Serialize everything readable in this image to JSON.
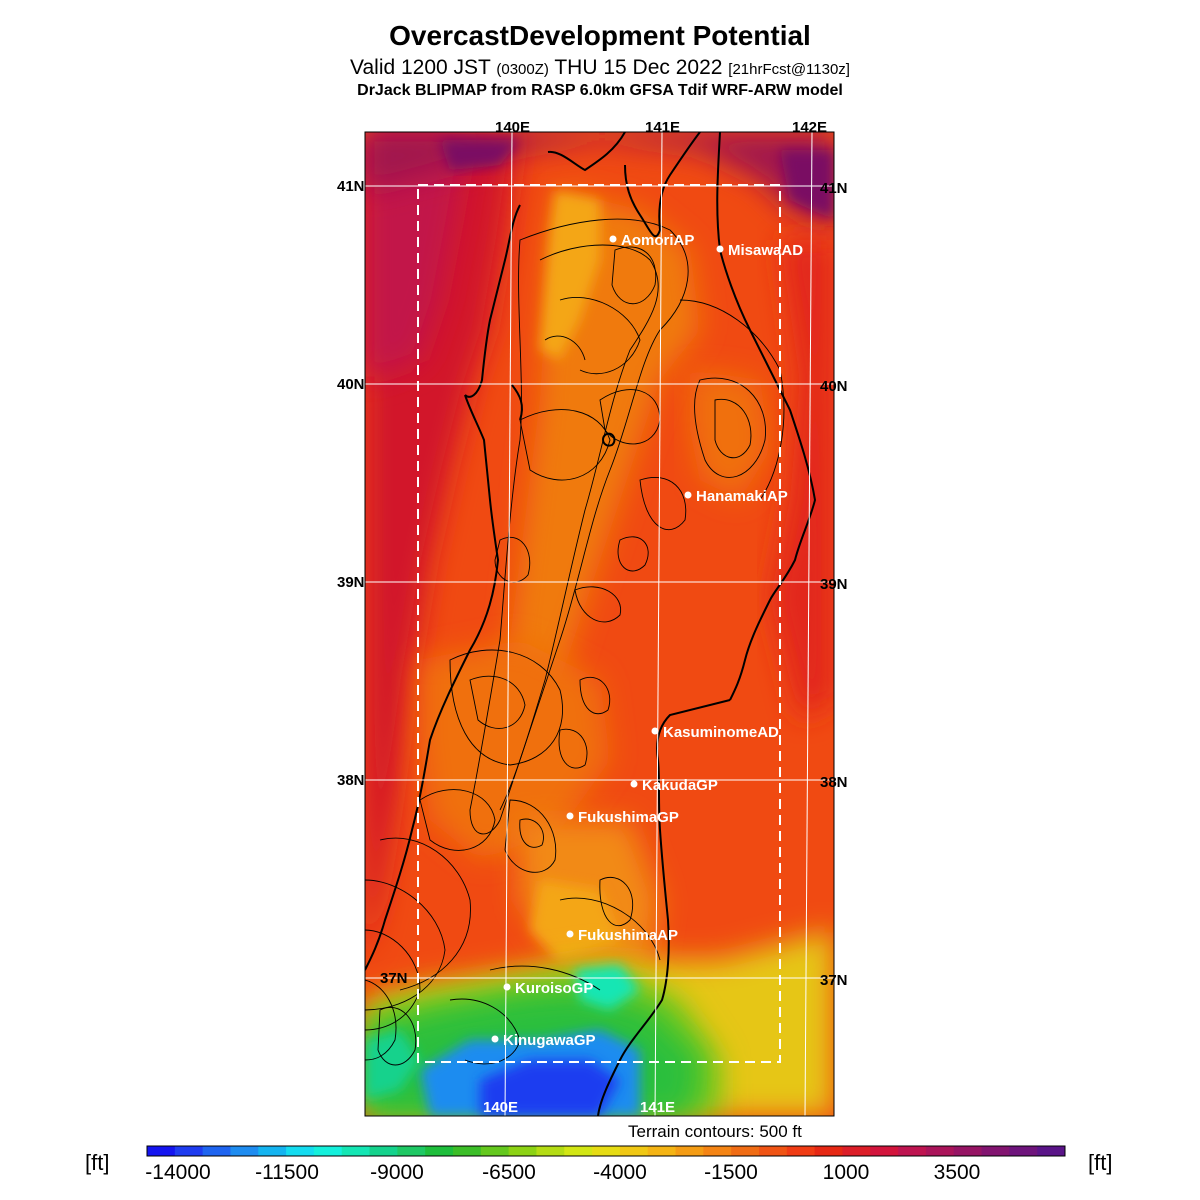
{
  "header": {
    "title": "OvercastDevelopment Potential",
    "valid_prefix": "Valid 1200 JST",
    "valid_utc": "(0300Z)",
    "valid_date": "THU 15 Dec 2022",
    "forecast_info": "[21hrFcst@1130z]",
    "model_line": "DrJack BLIPMAP from RASP 6.0km GFSA Tdif WRF-ARW model"
  },
  "map": {
    "lon_labels_top": [
      "140E",
      "141E",
      "142E"
    ],
    "lon_labels_bottom": [
      "140E",
      "141E"
    ],
    "lat_labels_left": [
      "41N",
      "40N",
      "39N",
      "38N",
      "37N"
    ],
    "lat_labels_right": [
      "41N",
      "40N",
      "39N",
      "38N",
      "37N"
    ],
    "stations": [
      "AomoriAP",
      "MisawaAD",
      "HanamakiAP",
      "KasuminomeAD",
      "KakudaGP",
      "FukushimaGP",
      "FukushimaAP",
      "KuroisoGP",
      "KinugawaGP"
    ],
    "terrain_note": "Terrain contours: 500 ft",
    "colors": {
      "sea": "#d2142b",
      "land_main": "#f04a12",
      "mountains": "#f07a10",
      "highlight": "#f4a614",
      "green": "#2cbf3c",
      "blue": "#1e3cf0",
      "purple": "#7a1064"
    }
  },
  "colorbar": {
    "unit_left": "[ft]",
    "unit_right": "[ft]",
    "tick_labels": [
      "-14000",
      "-11500",
      "-9000",
      "-6500",
      "-4000",
      "-1500",
      "1000",
      "3500"
    ],
    "colors": [
      "#1414f0",
      "#1e3cf0",
      "#1e64f0",
      "#1e8cf0",
      "#14b4f0",
      "#14dcf0",
      "#14f0dc",
      "#14e6b4",
      "#14d28c",
      "#1ec864",
      "#1ebe3c",
      "#3cbe28",
      "#64c81e",
      "#8cd214",
      "#b4dc14",
      "#d2e614",
      "#e6dc14",
      "#f0c814",
      "#f4b414",
      "#f49c14",
      "#f48414",
      "#f06c14",
      "#f05414",
      "#f03c14",
      "#e62814",
      "#dc1e28",
      "#d2143c",
      "#be1450",
      "#aa145a",
      "#961464",
      "#821470",
      "#6e147c",
      "#5a1488"
    ]
  }
}
